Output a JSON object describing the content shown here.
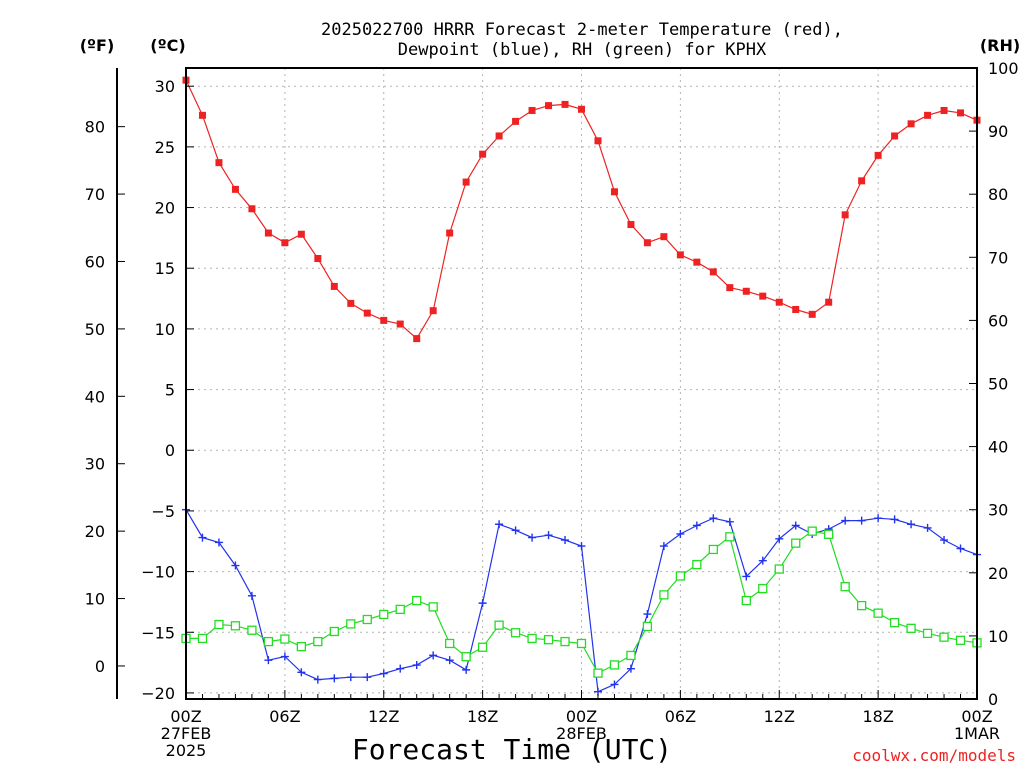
{
  "chart_data": {
    "type": "line",
    "title_line1": "2025022700 HRRR Forecast 2-meter Temperature (red),",
    "title_line2": "Dewpoint (blue), RH (green) for KPHX",
    "xlabel": "Forecast Time (UTC)",
    "credit": "coolwx.com/models",
    "unit_f": "(ºF)",
    "unit_c": "(ºC)",
    "unit_rh": "(RH)",
    "x_hours": [
      0,
      1,
      2,
      3,
      4,
      5,
      6,
      7,
      8,
      9,
      10,
      11,
      12,
      13,
      14,
      15,
      16,
      17,
      18,
      19,
      20,
      21,
      22,
      23,
      24,
      25,
      26,
      27,
      28,
      29,
      30,
      31,
      32,
      33,
      34,
      35,
      36,
      37,
      38,
      39,
      40,
      41,
      42,
      43,
      44,
      45,
      46,
      47,
      48
    ],
    "x_ticks": [
      {
        "hour": 0,
        "labels": [
          "00Z",
          "27FEB",
          "2025"
        ]
      },
      {
        "hour": 6,
        "labels": [
          "06Z"
        ]
      },
      {
        "hour": 12,
        "labels": [
          "12Z"
        ]
      },
      {
        "hour": 18,
        "labels": [
          "18Z"
        ]
      },
      {
        "hour": 24,
        "labels": [
          "00Z",
          "28FEB"
        ]
      },
      {
        "hour": 30,
        "labels": [
          "06Z"
        ]
      },
      {
        "hour": 36,
        "labels": [
          "12Z"
        ]
      },
      {
        "hour": 42,
        "labels": [
          "18Z"
        ]
      },
      {
        "hour": 48,
        "labels": [
          "00Z",
          "1MAR"
        ]
      }
    ],
    "xlim": [
      0,
      48
    ],
    "ylim_c": [
      -20.5,
      31.5
    ],
    "ylim_f": [
      -4.9,
      88.7
    ],
    "ylim_rh": [
      0,
      100
    ],
    "yticks_c": [
      -20,
      -15,
      -10,
      -5,
      0,
      5,
      10,
      15,
      20,
      25,
      30
    ],
    "yticks_f": [
      0,
      10,
      20,
      30,
      40,
      50,
      60,
      70,
      80
    ],
    "yticks_rh": [
      0,
      10,
      20,
      30,
      40,
      50,
      60,
      70,
      80,
      90,
      100
    ],
    "grid": true,
    "series": [
      {
        "name": "2-meter Temperature",
        "axis": "C",
        "color": "#ee2222",
        "marker": "filled-square",
        "values": [
          30.5,
          27.6,
          23.7,
          21.5,
          19.9,
          17.9,
          17.1,
          17.8,
          15.8,
          13.5,
          12.1,
          11.3,
          10.7,
          10.4,
          9.2,
          11.5,
          17.9,
          22.1,
          24.4,
          25.9,
          27.1,
          28.0,
          28.4,
          28.5,
          28.1,
          25.5,
          21.3,
          18.6,
          17.1,
          17.6,
          16.1,
          15.5,
          14.7,
          13.4,
          13.1,
          12.7,
          12.2,
          11.6,
          11.2,
          12.2,
          19.4,
          22.2,
          24.3,
          25.9,
          26.9,
          27.6,
          28.0,
          27.8,
          27.2
        ]
      },
      {
        "name": "Dewpoint",
        "axis": "C",
        "color": "#2233ee",
        "marker": "plus",
        "values": [
          -4.9,
          -7.2,
          -7.6,
          -9.5,
          -12.0,
          -17.3,
          -17.0,
          -18.3,
          -18.9,
          -18.8,
          -18.7,
          -18.7,
          -18.4,
          -18.0,
          -17.7,
          -16.9,
          -17.3,
          -18.1,
          -12.6,
          -6.1,
          -6.6,
          -7.2,
          -7.0,
          -7.4,
          -7.9,
          -19.9,
          -19.3,
          -18.0,
          -13.5,
          -7.9,
          -6.9,
          -6.2,
          -5.6,
          -5.9,
          -10.4,
          -9.1,
          -7.3,
          -6.2,
          -6.9,
          -6.5,
          -5.8,
          -5.8,
          -5.6,
          -5.7,
          -6.1,
          -6.4,
          -7.4,
          -8.1,
          -8.6
        ]
      },
      {
        "name": "RH",
        "axis": "RH",
        "color": "#22dd22",
        "marker": "open-square",
        "values": [
          9.6,
          9.6,
          11.8,
          11.6,
          10.9,
          9.1,
          9.5,
          8.3,
          9.1,
          10.7,
          11.9,
          12.6,
          13.4,
          14.2,
          15.6,
          14.6,
          8.8,
          6.7,
          8.2,
          11.7,
          10.5,
          9.6,
          9.4,
          9.1,
          8.8,
          4.1,
          5.4,
          6.9,
          11.5,
          16.5,
          19.5,
          21.3,
          23.7,
          25.7,
          15.6,
          17.5,
          20.6,
          24.7,
          26.6,
          26.1,
          17.8,
          14.8,
          13.6,
          12.1,
          11.2,
          10.4,
          9.8,
          9.3,
          8.9
        ]
      }
    ]
  }
}
